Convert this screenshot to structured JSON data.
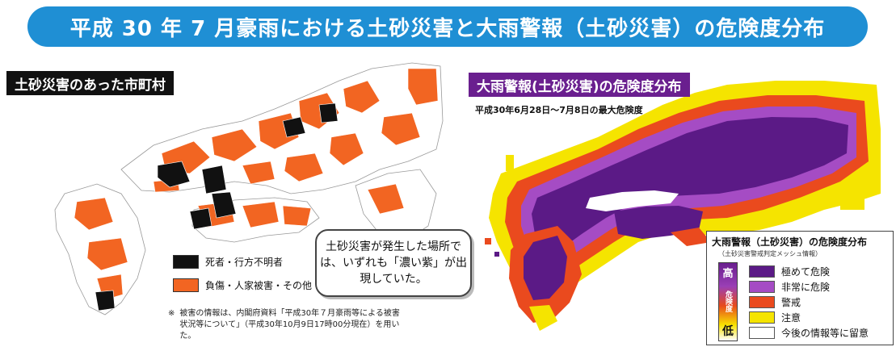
{
  "title": "平成 30 年 7 月豪雨における土砂災害と大雨警報（土砂災害）の危険度分布",
  "left_panel": {
    "label": "土砂災害のあった市町村",
    "legend": [
      {
        "label": "死者・行方不明者",
        "color": "#111111"
      },
      {
        "label": "負傷・人家被害・その他",
        "color": "#f26522"
      }
    ],
    "footnote_mark": "※",
    "footnote": "被害の情報は、内閣府資料「平成30年７月豪雨等による被害状況等について」（平成30年10月9日17時00分現在）を用いた。"
  },
  "callout": {
    "text": "土砂災害が発生した場所では、いずれも「濃い紫」が出現していた。"
  },
  "right_panel": {
    "label": "大雨警報(土砂災害)の危険度分布",
    "date_note": "平成30年6月28日～7月8日の最大危険度",
    "legend_title": "大雨警報（土砂災害）の危険度分布",
    "legend_subtitle": "（土砂災害警戒判定メッシュ情報）",
    "scale_high": "高",
    "scale_mid": "危険度",
    "scale_low": "低",
    "levels": [
      {
        "label": "極めて危険",
        "color": "#5b1a86"
      },
      {
        "label": "非常に危険",
        "color": "#a54cc4"
      },
      {
        "label": "警戒",
        "color": "#ea4a1e"
      },
      {
        "label": "注意",
        "color": "#f5e400"
      },
      {
        "label": "今後の情報等に留意",
        "color": "#ffffff"
      }
    ]
  }
}
